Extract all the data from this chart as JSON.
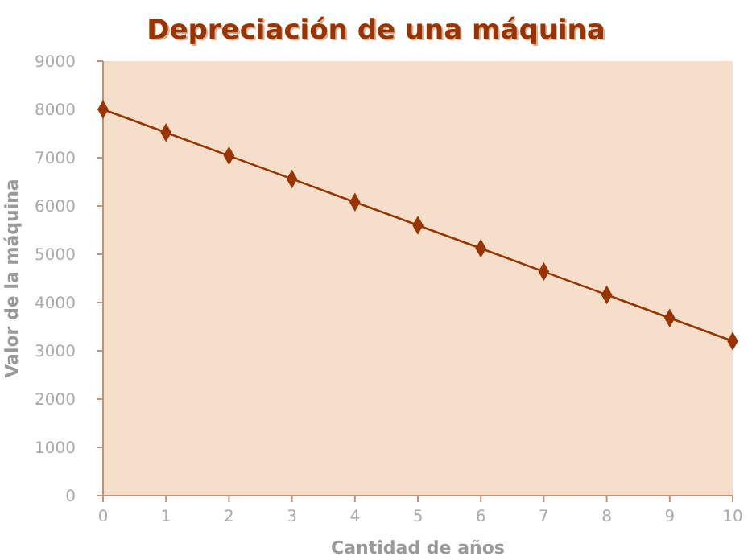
{
  "chart_data": {
    "type": "line",
    "title": "Depreciación de una máquina",
    "xlabel": "Cantidad de años",
    "ylabel": "Valor de la máquina",
    "x": [
      0,
      1,
      2,
      3,
      4,
      5,
      6,
      7,
      8,
      9,
      10
    ],
    "series": [
      {
        "color": "#993300",
        "values": [
          8000,
          7520,
          7040,
          6560,
          6080,
          5600,
          5120,
          4640,
          4160,
          3680,
          3200
        ]
      }
    ],
    "xlim": [
      0,
      10
    ],
    "xticks": [
      0,
      1,
      2,
      3,
      4,
      5,
      6,
      7,
      8,
      9,
      10
    ],
    "ylim": [
      0,
      9000
    ],
    "yticks": [
      0,
      1000,
      2000,
      3000,
      4000,
      5000,
      6000,
      7000,
      8000,
      9000
    ],
    "grid": false,
    "marker": "diamond",
    "line_style": "solid"
  }
}
